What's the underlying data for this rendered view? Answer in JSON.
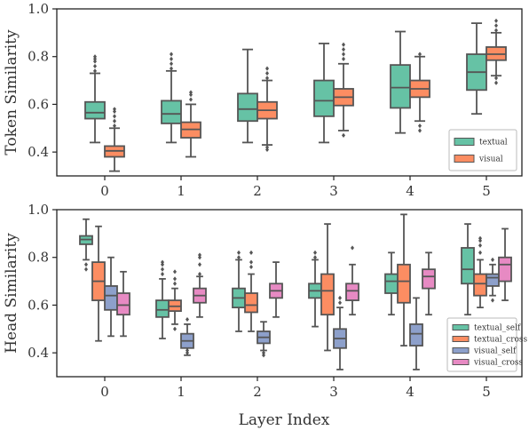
{
  "colors": {
    "textual": "#66c2a5",
    "visual": "#fc8d62",
    "textual_self": "#66c2a5",
    "textual_cross": "#fc8d62",
    "visual_self": "#8da0cb",
    "visual_cross": "#e78ac3",
    "whisker": "#555555",
    "frame": "#222222"
  },
  "xlabel": "Layer Index",
  "chart_data": [
    {
      "type": "box",
      "title": "",
      "xlabel": "",
      "ylabel": "Token Similarity",
      "ylim": [
        0.3,
        1.0
      ],
      "yticks": [
        0.4,
        0.6,
        0.8,
        1.0
      ],
      "yticklabels": [
        "0.4",
        "0.6",
        "0.8",
        "1.0"
      ],
      "categories": [
        "0",
        "1",
        "2",
        "3",
        "4",
        "5"
      ],
      "legend": {
        "position": "lower-right",
        "entries": [
          "textual",
          "visual"
        ]
      },
      "grid": false,
      "series": [
        {
          "name": "textual",
          "boxes": [
            {
              "whislo": 0.44,
              "q1": 0.54,
              "med": 0.565,
              "q3": 0.61,
              "whishi": 0.73,
              "fliers": [
                0.74,
                0.76,
                0.78,
                0.79,
                0.8
              ]
            },
            {
              "whislo": 0.44,
              "q1": 0.52,
              "med": 0.56,
              "q3": 0.615,
              "whishi": 0.74,
              "fliers": [
                0.75,
                0.77,
                0.79,
                0.81
              ]
            },
            {
              "whislo": 0.44,
              "q1": 0.53,
              "med": 0.58,
              "q3": 0.645,
              "whishi": 0.83,
              "fliers": []
            },
            {
              "whislo": 0.44,
              "q1": 0.55,
              "med": 0.615,
              "q3": 0.7,
              "whishi": 0.855,
              "fliers": []
            },
            {
              "whislo": 0.48,
              "q1": 0.585,
              "med": 0.67,
              "q3": 0.765,
              "whishi": 0.905,
              "fliers": []
            },
            {
              "whislo": 0.56,
              "q1": 0.66,
              "med": 0.735,
              "q3": 0.81,
              "whishi": 0.94,
              "fliers": []
            }
          ]
        },
        {
          "name": "visual",
          "boxes": [
            {
              "whislo": 0.32,
              "q1": 0.38,
              "med": 0.405,
              "q3": 0.425,
              "whishi": 0.5,
              "fliers": [
                0.51,
                0.53,
                0.55,
                0.57,
                0.58
              ]
            },
            {
              "whislo": 0.38,
              "q1": 0.46,
              "med": 0.495,
              "q3": 0.525,
              "whishi": 0.6,
              "fliers": [
                0.62,
                0.64,
                0.65
              ]
            },
            {
              "whislo": 0.43,
              "q1": 0.54,
              "med": 0.575,
              "q3": 0.61,
              "whishi": 0.7,
              "fliers": [
                0.41,
                0.42,
                0.71,
                0.73,
                0.75
              ]
            },
            {
              "whislo": 0.49,
              "q1": 0.595,
              "med": 0.63,
              "q3": 0.665,
              "whishi": 0.77,
              "fliers": [
                0.47,
                0.79,
                0.81,
                0.83,
                0.85
              ]
            },
            {
              "whislo": 0.53,
              "q1": 0.63,
              "med": 0.665,
              "q3": 0.7,
              "whishi": 0.8,
              "fliers": [
                0.49,
                0.51,
                0.81
              ]
            },
            {
              "whislo": 0.72,
              "q1": 0.785,
              "med": 0.81,
              "q3": 0.84,
              "whishi": 0.9,
              "fliers": [
                0.69,
                0.71,
                0.91,
                0.93,
                0.95
              ]
            }
          ]
        }
      ]
    },
    {
      "type": "box",
      "title": "",
      "xlabel": "Layer Index",
      "ylabel": "Head Similarity",
      "ylim": [
        0.3,
        1.0
      ],
      "yticks": [
        0.4,
        0.6,
        0.8,
        1.0
      ],
      "yticklabels": [
        "0.4",
        "0.6",
        "0.8",
        "1.0"
      ],
      "categories": [
        "0",
        "1",
        "2",
        "3",
        "4",
        "5"
      ],
      "legend": {
        "position": "lower-right",
        "entries": [
          "textual_self",
          "textual_cross",
          "visual_self",
          "visual_cross"
        ]
      },
      "grid": false,
      "series": [
        {
          "name": "textual_self",
          "boxes": [
            {
              "whislo": 0.79,
              "q1": 0.855,
              "med": 0.875,
              "q3": 0.89,
              "whishi": 0.96,
              "fliers": [
                0.75,
                0.77
              ]
            },
            {
              "whislo": 0.46,
              "q1": 0.55,
              "med": 0.58,
              "q3": 0.62,
              "whishi": 0.71,
              "fliers": [
                0.73,
                0.75,
                0.77,
                0.78
              ]
            },
            {
              "whislo": 0.49,
              "q1": 0.59,
              "med": 0.63,
              "q3": 0.67,
              "whishi": 0.79,
              "fliers": [
                0.8,
                0.82
              ]
            },
            {
              "whislo": 0.51,
              "q1": 0.63,
              "med": 0.66,
              "q3": 0.69,
              "whishi": 0.79,
              "fliers": [
                0.8,
                0.82
              ]
            },
            {
              "whislo": 0.56,
              "q1": 0.65,
              "med": 0.7,
              "q3": 0.73,
              "whishi": 0.82,
              "fliers": []
            },
            {
              "whislo": 0.56,
              "q1": 0.69,
              "med": 0.75,
              "q3": 0.84,
              "whishi": 0.94,
              "fliers": []
            }
          ]
        },
        {
          "name": "textual_cross",
          "boxes": [
            {
              "whislo": 0.45,
              "q1": 0.62,
              "med": 0.7,
              "q3": 0.78,
              "whishi": 0.93,
              "fliers": []
            },
            {
              "whislo": 0.52,
              "q1": 0.575,
              "med": 0.595,
              "q3": 0.62,
              "whishi": 0.67,
              "fliers": [
                0.5,
                0.69,
                0.71,
                0.74
              ]
            },
            {
              "whislo": 0.49,
              "q1": 0.57,
              "med": 0.6,
              "q3": 0.65,
              "whishi": 0.73,
              "fliers": [
                0.76,
                0.78,
                0.82
              ]
            },
            {
              "whislo": 0.41,
              "q1": 0.56,
              "med": 0.66,
              "q3": 0.73,
              "whishi": 0.94,
              "fliers": []
            },
            {
              "whislo": 0.43,
              "q1": 0.61,
              "med": 0.7,
              "q3": 0.77,
              "whishi": 0.98,
              "fliers": []
            },
            {
              "whislo": 0.59,
              "q1": 0.64,
              "med": 0.69,
              "q3": 0.73,
              "whishi": 0.79,
              "fliers": [
                0.82,
                0.85,
                0.87,
                0.88
              ]
            }
          ]
        },
        {
          "name": "visual_self",
          "boxes": [
            {
              "whislo": 0.47,
              "q1": 0.58,
              "med": 0.64,
              "q3": 0.68,
              "whishi": 0.8,
              "fliers": []
            },
            {
              "whislo": 0.39,
              "q1": 0.42,
              "med": 0.45,
              "q3": 0.48,
              "whishi": 0.52,
              "fliers": [
                0.4,
                0.41,
                0.54
              ]
            },
            {
              "whislo": 0.41,
              "q1": 0.44,
              "med": 0.465,
              "q3": 0.49,
              "whishi": 0.53,
              "fliers": [
                0.39,
                0.4
              ]
            },
            {
              "whislo": 0.33,
              "q1": 0.42,
              "med": 0.46,
              "q3": 0.5,
              "whishi": 0.59,
              "fliers": [
                0.61,
                0.63
              ]
            },
            {
              "whislo": 0.33,
              "q1": 0.43,
              "med": 0.48,
              "q3": 0.52,
              "whishi": 0.63,
              "fliers": []
            },
            {
              "whislo": 0.64,
              "q1": 0.68,
              "med": 0.715,
              "q3": 0.73,
              "whishi": 0.77,
              "fliers": [
                0.62,
                0.79
              ]
            }
          ]
        },
        {
          "name": "visual_cross",
          "boxes": [
            {
              "whislo": 0.47,
              "q1": 0.56,
              "med": 0.6,
              "q3": 0.65,
              "whishi": 0.74,
              "fliers": []
            },
            {
              "whislo": 0.55,
              "q1": 0.61,
              "med": 0.64,
              "q3": 0.67,
              "whishi": 0.72,
              "fliers": [
                0.73,
                0.77,
                0.8,
                0.81
              ]
            },
            {
              "whislo": 0.55,
              "q1": 0.63,
              "med": 0.66,
              "q3": 0.69,
              "whishi": 0.78,
              "fliers": []
            },
            {
              "whislo": 0.56,
              "q1": 0.62,
              "med": 0.66,
              "q3": 0.69,
              "whishi": 0.77,
              "fliers": [
                0.84
              ]
            },
            {
              "whislo": 0.56,
              "q1": 0.67,
              "med": 0.72,
              "q3": 0.75,
              "whishi": 0.82,
              "fliers": []
            },
            {
              "whislo": 0.62,
              "q1": 0.7,
              "med": 0.77,
              "q3": 0.8,
              "whishi": 0.92,
              "fliers": []
            }
          ]
        }
      ]
    }
  ]
}
